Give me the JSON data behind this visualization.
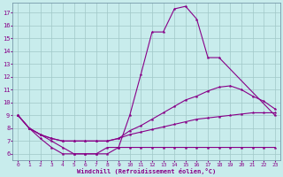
{
  "bg_color": "#c8ecec",
  "grid_color": "#a0c8c8",
  "line_color": "#880088",
  "xlabel": "Windchill (Refroidissement éolien,°C)",
  "xlim": [
    -0.5,
    23.5
  ],
  "ylim": [
    5.5,
    17.8
  ],
  "xticks": [
    0,
    1,
    2,
    3,
    4,
    5,
    6,
    7,
    8,
    9,
    10,
    11,
    12,
    13,
    14,
    15,
    16,
    17,
    18,
    19,
    20,
    21,
    22,
    23
  ],
  "yticks": [
    6,
    7,
    8,
    9,
    10,
    11,
    12,
    13,
    14,
    15,
    16,
    17
  ],
  "series": [
    {
      "x": [
        0,
        1,
        2,
        3,
        4,
        5,
        6,
        7,
        8,
        9,
        10,
        11,
        12,
        13,
        14,
        15,
        16,
        17,
        18,
        23
      ],
      "y": [
        9,
        8,
        7.5,
        7,
        6.5,
        6,
        6,
        6,
        6.5,
        6.5,
        9.0,
        12.2,
        15.5,
        15.5,
        17.3,
        17.5,
        16.5,
        13.5,
        13.5,
        9
      ]
    },
    {
      "x": [
        0,
        1,
        2,
        3,
        4,
        5,
        6,
        7,
        8,
        9,
        10,
        11,
        12,
        13,
        14,
        15,
        16,
        17,
        18,
        19,
        20,
        21,
        22,
        23
      ],
      "y": [
        9,
        8,
        7.5,
        7.2,
        7.0,
        7.0,
        7.0,
        7.0,
        7.0,
        7.2,
        7.8,
        8.2,
        8.7,
        9.2,
        9.7,
        10.2,
        10.5,
        10.9,
        11.2,
        11.3,
        11.0,
        10.5,
        10.1,
        9.5
      ]
    },
    {
      "x": [
        0,
        1,
        2,
        3,
        4,
        5,
        6,
        7,
        8,
        9,
        10,
        11,
        12,
        13,
        14,
        15,
        16,
        17,
        18,
        19,
        20,
        21,
        22,
        23
      ],
      "y": [
        9,
        8,
        7.5,
        7.2,
        7.0,
        7.0,
        7.0,
        7.0,
        7.0,
        7.2,
        7.5,
        7.7,
        7.9,
        8.1,
        8.3,
        8.5,
        8.7,
        8.8,
        8.9,
        9.0,
        9.1,
        9.2,
        9.2,
        9.2
      ]
    },
    {
      "x": [
        0,
        1,
        2,
        3,
        4,
        5,
        6,
        7,
        8,
        9,
        10,
        11,
        12,
        13,
        14,
        15,
        16,
        17,
        18,
        19,
        20,
        21,
        22,
        23
      ],
      "y": [
        9,
        8,
        7.2,
        6.5,
        6.0,
        6.0,
        6.0,
        6.0,
        6.0,
        6.5,
        6.5,
        6.5,
        6.5,
        6.5,
        6.5,
        6.5,
        6.5,
        6.5,
        6.5,
        6.5,
        6.5,
        6.5,
        6.5,
        6.5
      ]
    }
  ]
}
